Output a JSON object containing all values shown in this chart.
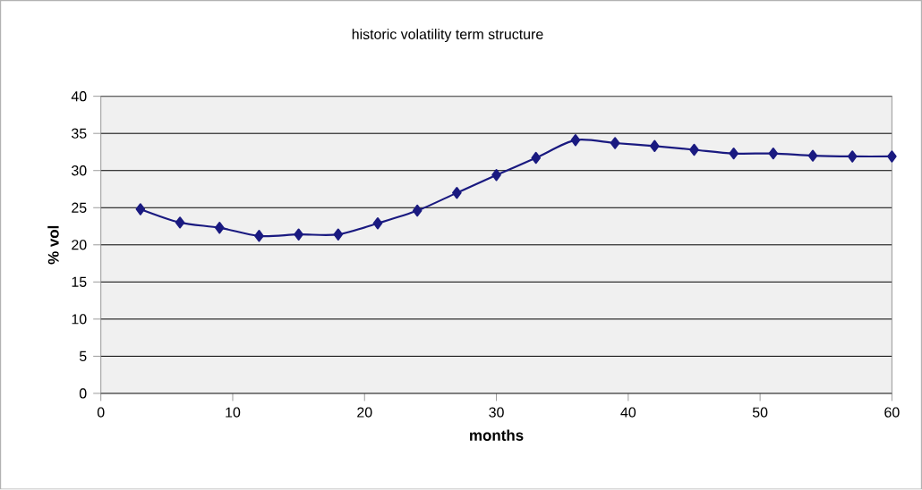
{
  "chart_data": {
    "type": "line",
    "title": "historic volatility term structure",
    "xlabel": "months",
    "ylabel": "% vol",
    "x": [
      3,
      6,
      9,
      12,
      15,
      18,
      21,
      24,
      27,
      30,
      33,
      36,
      39,
      42,
      45,
      48,
      51,
      54,
      57,
      60
    ],
    "series": [
      {
        "color": "#1a1a80",
        "values": [
          24.8,
          23.0,
          22.3,
          21.2,
          21.4,
          21.4,
          22.9,
          24.6,
          27.0,
          29.4,
          31.7,
          34.1,
          33.7,
          33.3,
          32.8,
          32.3,
          32.3,
          32.0,
          31.9,
          31.9
        ]
      }
    ],
    "xlim": [
      0,
      60
    ],
    "ylim": [
      0,
      40
    ],
    "xticks": [
      0,
      10,
      20,
      30,
      40,
      50,
      60
    ],
    "yticks": [
      0,
      5,
      10,
      15,
      20,
      25,
      30,
      35,
      40
    ],
    "grid": "y",
    "marker": "diamond",
    "line_style": "solid"
  }
}
